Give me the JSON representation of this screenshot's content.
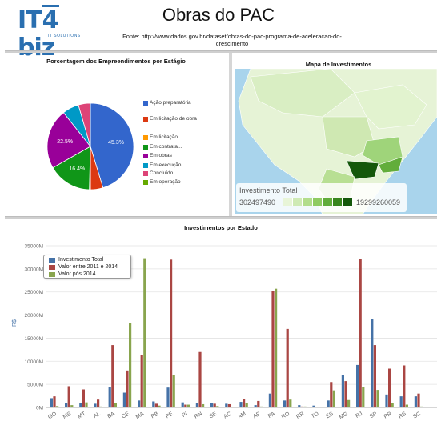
{
  "logo": {
    "text_a": "IT",
    "text_b": "4",
    "text_c": "biz",
    "tagline": "IT SOLUTIONS"
  },
  "page": {
    "title": "Obras do PAC",
    "source": "Fonte: http://www.dados.gov.br/dataset/obras-do-pac-programa-de-aceleracao-do-crescimento"
  },
  "pie_panel": {
    "title": "Porcentagem dos Empreendimentos por Estágio",
    "legend": [
      {
        "label": "Ação preparatória",
        "color": "#3366cc"
      },
      {
        "label": "Em licitação de obra",
        "color": "#dc3912"
      },
      {
        "label": "Em licitação...",
        "color": "#ff9900"
      },
      {
        "label": "Em contrata...",
        "color": "#109618"
      },
      {
        "label": "Em obras",
        "color": "#990099"
      },
      {
        "label": "Em execução",
        "color": "#0099c6"
      },
      {
        "label": "Concluído",
        "color": "#dd4477"
      },
      {
        "label": "Em operação",
        "color": "#66aa00"
      }
    ]
  },
  "map_panel": {
    "title": "Mapa de Investimentos",
    "legend_title": "Investimento Total",
    "min_label": "302497490",
    "max_label": "19299260059",
    "scale_colors": [
      "#e8f5d8",
      "#cfeab5",
      "#b2dd8c",
      "#8fcb62",
      "#62ad3b",
      "#38861d",
      "#14580a"
    ]
  },
  "bar_panel": {
    "title": "Investimentos por Estado",
    "legend": [
      {
        "label": "Investimento Total",
        "color": "#4572a7"
      },
      {
        "label": "Valor entre 2011 e 2014",
        "color": "#aa4643"
      },
      {
        "label": "Valor pós 2014",
        "color": "#89a54e"
      }
    ]
  },
  "chart_data": [
    {
      "type": "pie",
      "title": "Porcentagem dos Empreendimentos por Estágio",
      "categories": [
        "Ação preparatória",
        "Em licitação de obra",
        "Em licitação...",
        "Em contrata...",
        "Em obras",
        "Em execução",
        "Concluído",
        "Em operação"
      ],
      "values": [
        45.3,
        4.7,
        0.4,
        16.4,
        22.5,
        6.2,
        4.5,
        0.0
      ],
      "data_labels": [
        "45.3%",
        "",
        "",
        "16.4%",
        "22.5%",
        "",
        "",
        ""
      ],
      "colors": [
        "#3366cc",
        "#dc3912",
        "#ff9900",
        "#109618",
        "#990099",
        "#0099c6",
        "#dd4477",
        "#66aa00"
      ],
      "legend_position": "right"
    },
    {
      "type": "bar",
      "title": "Investimentos por Estado",
      "ylabel": "R$",
      "categories": [
        "GO",
        "MS",
        "MT",
        "AL",
        "BA",
        "CE",
        "MA",
        "PB",
        "PE",
        "PI",
        "RN",
        "SE",
        "AC",
        "AM",
        "AP",
        "PA",
        "RO",
        "RR",
        "TO",
        "ES",
        "MG",
        "RJ",
        "SP",
        "PR",
        "RS",
        "SC"
      ],
      "series": [
        {
          "name": "Investimento Total",
          "values": [
            2000,
            1000,
            1000,
            800,
            4500,
            3200,
            1500,
            1300,
            4300,
            1100,
            1000,
            900,
            800,
            1200,
            500,
            3000,
            1500,
            500,
            400,
            1500,
            7000,
            9200,
            19200,
            2800,
            2400,
            2400
          ]
        },
        {
          "name": "Valor entre 2011 e 2014",
          "values": [
            2400,
            4600,
            3900,
            1700,
            13500,
            8000,
            11300,
            800,
            32000,
            600,
            12000,
            800,
            700,
            1800,
            1400,
            25200,
            17000,
            200,
            100,
            5500,
            5700,
            32200,
            13500,
            8400,
            9100,
            3000
          ]
        },
        {
          "name": "Valor pós 2014",
          "values": [
            300,
            500,
            1100,
            200,
            1000,
            18200,
            32300,
            400,
            7000,
            600,
            700,
            300,
            100,
            1000,
            200,
            25700,
            1700,
            200,
            100,
            3700,
            1600,
            4500,
            3800,
            1000,
            600,
            200
          ]
        }
      ],
      "ylim": [
        0,
        35000
      ],
      "yticks": [
        "0M",
        "5000M",
        "10000M",
        "15000M",
        "20000M",
        "25000M",
        "30000M",
        "35000M"
      ],
      "grid": true,
      "legend_position": "top-left"
    }
  ]
}
